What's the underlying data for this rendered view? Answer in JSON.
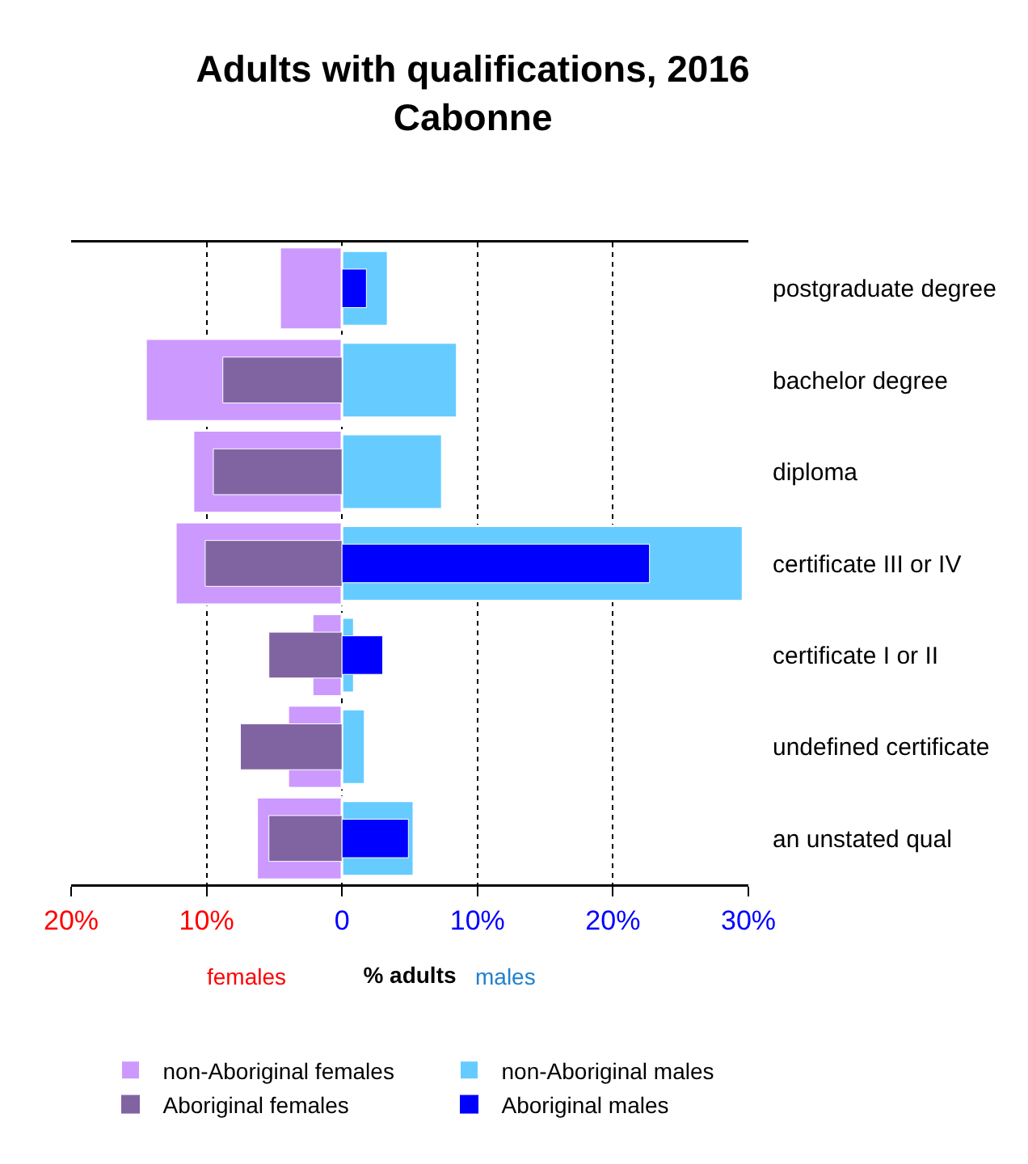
{
  "chart_data": {
    "type": "bar",
    "orientation": "horizontal",
    "title": "Adults with qualifications, 2016\nCabonne",
    "xlabel": "% adults",
    "annotations": [
      "females",
      "males"
    ],
    "categories": [
      "postgraduate degree",
      "bachelor degree",
      "diploma",
      "certificate III or IV",
      "certificate I or II",
      "undefined certificate",
      "an unstated qual"
    ],
    "series": [
      {
        "name": "non-Aboriginal females",
        "color": "#cc99ff",
        "values": [
          -4.6,
          -14.5,
          -11.0,
          -12.3,
          -2.2,
          -4.0,
          -6.3
        ]
      },
      {
        "name": "non-Aboriginal males",
        "color": "#66ccff",
        "values": [
          3.4,
          8.5,
          7.4,
          29.6,
          0.9,
          1.7,
          5.3
        ]
      },
      {
        "name": "Aboriginal females",
        "color": "#8064a2",
        "values": [
          null,
          -8.8,
          -9.5,
          -10.1,
          -5.4,
          -7.5,
          -5.4
        ]
      },
      {
        "name": "Aboriginal males",
        "color": "#0000ff",
        "values": [
          1.8,
          null,
          null,
          22.7,
          3.0,
          null,
          4.9
        ]
      }
    ],
    "xlim": [
      -20,
      30
    ],
    "xticks": [
      {
        "value": -20,
        "label": "20%"
      },
      {
        "value": -10,
        "label": "10%"
      },
      0,
      {
        "value": 10,
        "label": "10%"
      },
      {
        "value": 20,
        "label": "20%"
      },
      {
        "value": 30,
        "label": "30%"
      }
    ],
    "grid": "x",
    "legend": "bottom"
  }
}
